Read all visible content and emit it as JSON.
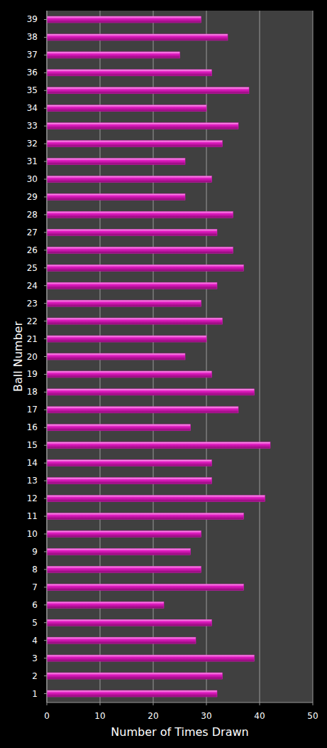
{
  "chart_data": {
    "type": "bar",
    "orientation": "horizontal",
    "x_label": "Number of Times Drawn",
    "y_label": "Ball Number",
    "categories": [
      "1",
      "2",
      "3",
      "4",
      "5",
      "6",
      "7",
      "8",
      "9",
      "10",
      "11",
      "12",
      "13",
      "14",
      "15",
      "16",
      "17",
      "18",
      "19",
      "20",
      "21",
      "22",
      "23",
      "24",
      "25",
      "26",
      "27",
      "28",
      "29",
      "30",
      "31",
      "32",
      "33",
      "34",
      "35",
      "36",
      "37",
      "38",
      "39"
    ],
    "values": [
      32,
      33,
      39,
      28,
      31,
      22,
      37,
      29,
      27,
      29,
      37,
      41,
      31,
      31,
      42,
      27,
      36,
      39,
      31,
      26,
      30,
      33,
      29,
      32,
      37,
      35,
      32,
      35,
      26,
      31,
      26,
      33,
      36,
      30,
      38,
      31,
      25,
      34,
      29
    ],
    "color": "#e21bc3",
    "xlim": [
      0,
      50
    ],
    "xticks": [
      0,
      10,
      20,
      30,
      40,
      50
    ],
    "grid": true
  }
}
